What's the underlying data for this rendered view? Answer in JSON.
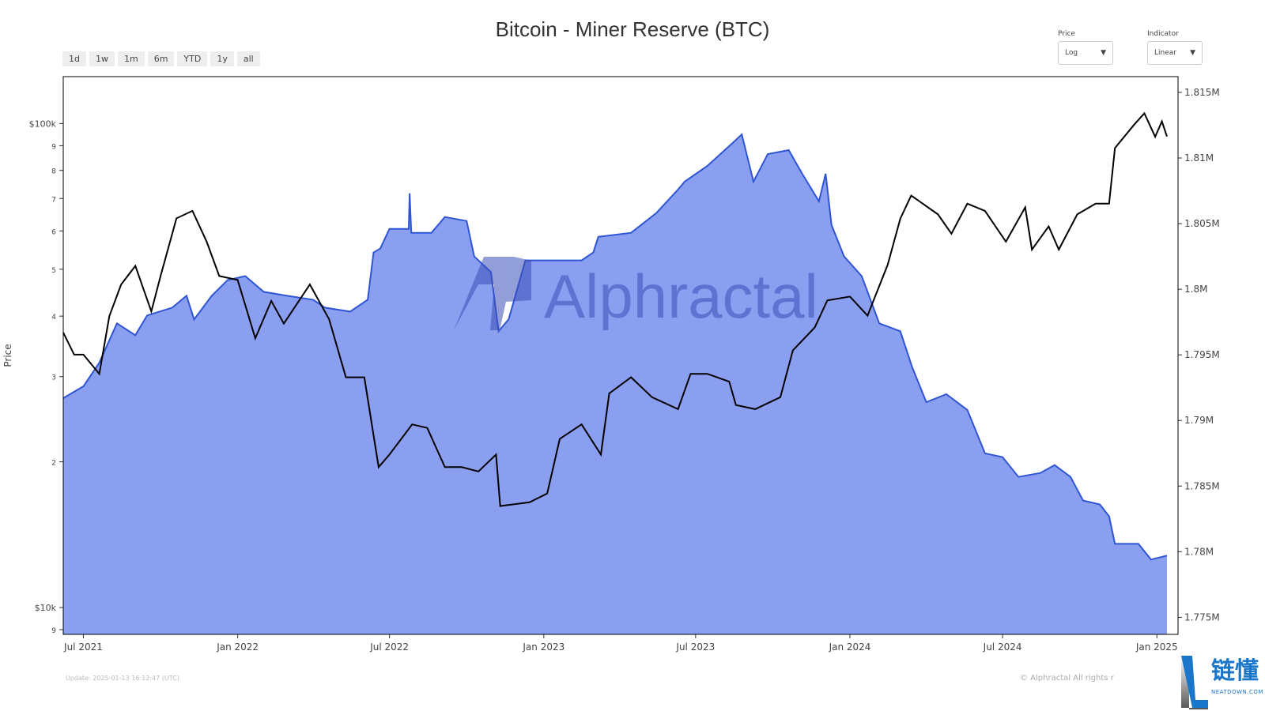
{
  "title": "Bitcoin - Miner Reserve (BTC)",
  "range_buttons": [
    "1d",
    "1w",
    "1m",
    "6m",
    "YTD",
    "1y",
    "all"
  ],
  "price_select": {
    "label": "Price",
    "value": "Log"
  },
  "indicator_select": {
    "label": "Indicator",
    "value": "Linear"
  },
  "watermark": "Alphractal",
  "footer": {
    "update": "Update: 2025-01-13 16:12:47 (UTC)",
    "copyright": "© Alphractal All rights r"
  },
  "corner_logo": {
    "text": "链懂",
    "sub": "NEATDOWN.COM"
  },
  "colors": {
    "fill": "#8a9ff0",
    "line": "#2f55d4",
    "price": "#000000"
  },
  "chart_data": {
    "type": "area+line",
    "xlim": [
      "2021-06-07",
      "2025-01-13"
    ],
    "x_ticks": [
      [
        "2021-07-01",
        "Jul 2021"
      ],
      [
        "2022-01-01",
        "Jan 2022"
      ],
      [
        "2022-07-01",
        "Jul 2022"
      ],
      [
        "2023-01-01",
        "Jan 2023"
      ],
      [
        "2023-07-01",
        "Jul 2023"
      ],
      [
        "2024-01-01",
        "Jan 2024"
      ],
      [
        "2024-07-01",
        "Jul 2024"
      ],
      [
        "2025-01-01",
        "Jan 2025"
      ]
    ],
    "left_axis": {
      "label": "Price",
      "scale": "log",
      "ylim": [
        8800,
        125000
      ],
      "ticks": [
        [
          100000,
          "$100k"
        ],
        [
          90000,
          "9"
        ],
        [
          80000,
          "8"
        ],
        [
          70000,
          "7"
        ],
        [
          60000,
          "6"
        ],
        [
          50000,
          "5"
        ],
        [
          40000,
          "4"
        ],
        [
          30000,
          "3"
        ],
        [
          20000,
          "2"
        ],
        [
          10000,
          "$10k"
        ],
        [
          9000,
          "9"
        ]
      ]
    },
    "right_axis": {
      "scale": "linear",
      "ylim": [
        1.7737,
        1.8162
      ],
      "ticks": [
        [
          1.815,
          "1.815M"
        ],
        [
          1.81,
          "1.81M"
        ],
        [
          1.805,
          "1.805M"
        ],
        [
          1.8,
          "1.8M"
        ],
        [
          1.795,
          "1.795M"
        ],
        [
          1.79,
          "1.79M"
        ],
        [
          1.785,
          "1.785M"
        ],
        [
          1.78,
          "1.78M"
        ],
        [
          1.775,
          "1.775M"
        ]
      ]
    },
    "series": [
      {
        "axis": "right",
        "kind": "area",
        "points": [
          [
            "2021-06-07",
            1.7917
          ],
          [
            "2021-07-01",
            1.7926
          ],
          [
            "2021-07-20",
            1.7944
          ],
          [
            "2021-08-10",
            1.7974
          ],
          [
            "2021-09-01",
            1.7965
          ],
          [
            "2021-09-15",
            1.798
          ],
          [
            "2021-10-15",
            1.7986
          ],
          [
            "2021-11-01",
            1.7995
          ],
          [
            "2021-11-10",
            1.7977
          ],
          [
            "2021-12-01",
            1.7995
          ],
          [
            "2021-12-20",
            1.8007
          ],
          [
            "2022-01-10",
            1.801
          ],
          [
            "2022-02-01",
            1.7998
          ],
          [
            "2022-03-01",
            1.7995
          ],
          [
            "2022-04-01",
            1.7992
          ],
          [
            "2022-04-15",
            1.7986
          ],
          [
            "2022-05-15",
            1.7983
          ],
          [
            "2022-06-05",
            1.7992
          ],
          [
            "2022-06-12",
            1.8028
          ],
          [
            "2022-06-20",
            1.8031
          ],
          [
            "2022-07-01",
            1.8046
          ],
          [
            "2022-07-24",
            1.8046
          ],
          [
            "2022-07-25",
            1.8073
          ],
          [
            "2022-07-27",
            1.8043
          ],
          [
            "2022-08-20",
            1.8043
          ],
          [
            "2022-09-05",
            1.8055
          ],
          [
            "2022-10-01",
            1.8052
          ],
          [
            "2022-10-10",
            1.8025
          ],
          [
            "2022-10-30",
            1.8013
          ],
          [
            "2022-11-08",
            1.7968
          ],
          [
            "2022-11-20",
            1.7977
          ],
          [
            "2022-12-10",
            1.8022
          ],
          [
            "2023-01-15",
            1.8022
          ],
          [
            "2023-02-15",
            1.8022
          ],
          [
            "2023-03-01",
            1.8028
          ],
          [
            "2023-03-07",
            1.804
          ],
          [
            "2023-04-15",
            1.8043
          ],
          [
            "2023-05-15",
            1.8058
          ],
          [
            "2023-06-10",
            1.8076
          ],
          [
            "2023-06-18",
            1.8082
          ],
          [
            "2023-07-15",
            1.8094
          ],
          [
            "2023-08-15",
            1.8112
          ],
          [
            "2023-08-25",
            1.8118
          ],
          [
            "2023-09-08",
            1.8082
          ],
          [
            "2023-09-25",
            1.8103
          ],
          [
            "2023-10-20",
            1.8106
          ],
          [
            "2023-11-05",
            1.8088
          ],
          [
            "2023-11-25",
            1.8067
          ],
          [
            "2023-12-03",
            1.8088
          ],
          [
            "2023-12-10",
            1.8049
          ],
          [
            "2023-12-25",
            1.8025
          ],
          [
            "2024-01-15",
            1.801
          ],
          [
            "2024-02-05",
            1.7974
          ],
          [
            "2024-03-01",
            1.7968
          ],
          [
            "2024-03-15",
            1.7941
          ],
          [
            "2024-04-01",
            1.7914
          ],
          [
            "2024-04-25",
            1.792
          ],
          [
            "2024-05-20",
            1.7908
          ],
          [
            "2024-06-10",
            1.7875
          ],
          [
            "2024-07-01",
            1.7872
          ],
          [
            "2024-07-20",
            1.7857
          ],
          [
            "2024-08-15",
            1.786
          ],
          [
            "2024-09-01",
            1.7866
          ],
          [
            "2024-09-20",
            1.7857
          ],
          [
            "2024-10-05",
            1.7839
          ],
          [
            "2024-10-25",
            1.7836
          ],
          [
            "2024-11-05",
            1.7827
          ],
          [
            "2024-11-12",
            1.7806
          ],
          [
            "2024-12-10",
            1.7806
          ],
          [
            "2024-12-25",
            1.7794
          ],
          [
            "2025-01-13",
            1.7797
          ]
        ]
      },
      {
        "axis": "left",
        "kind": "line",
        "points": [
          [
            "2021-06-07",
            37000
          ],
          [
            "2021-06-20",
            33300
          ],
          [
            "2021-07-01",
            33300
          ],
          [
            "2021-07-20",
            30400
          ],
          [
            "2021-08-01",
            40000
          ],
          [
            "2021-08-15",
            46500
          ],
          [
            "2021-09-01",
            50800
          ],
          [
            "2021-09-20",
            40900
          ],
          [
            "2021-10-01",
            48400
          ],
          [
            "2021-10-20",
            63700
          ],
          [
            "2021-11-08",
            66000
          ],
          [
            "2021-11-25",
            57000
          ],
          [
            "2021-12-10",
            48400
          ],
          [
            "2022-01-01",
            47500
          ],
          [
            "2022-01-22",
            36000
          ],
          [
            "2022-02-10",
            43000
          ],
          [
            "2022-02-25",
            38600
          ],
          [
            "2022-03-28",
            46500
          ],
          [
            "2022-04-20",
            39400
          ],
          [
            "2022-05-10",
            29900
          ],
          [
            "2022-06-01",
            29900
          ],
          [
            "2022-06-18",
            19500
          ],
          [
            "2022-07-01",
            20700
          ],
          [
            "2022-07-28",
            23900
          ],
          [
            "2022-08-15",
            23500
          ],
          [
            "2022-09-05",
            19500
          ],
          [
            "2022-09-25",
            19500
          ],
          [
            "2022-10-15",
            19100
          ],
          [
            "2022-11-05",
            20700
          ],
          [
            "2022-11-10",
            16200
          ],
          [
            "2022-12-15",
            16500
          ],
          [
            "2023-01-05",
            17200
          ],
          [
            "2023-01-20",
            22300
          ],
          [
            "2023-02-15",
            23900
          ],
          [
            "2023-03-10",
            20700
          ],
          [
            "2023-03-20",
            27700
          ],
          [
            "2023-04-15",
            29900
          ],
          [
            "2023-05-10",
            27200
          ],
          [
            "2023-06-10",
            25700
          ],
          [
            "2023-06-25",
            30400
          ],
          [
            "2023-07-15",
            30400
          ],
          [
            "2023-08-10",
            29300
          ],
          [
            "2023-08-18",
            26200
          ],
          [
            "2023-09-10",
            25700
          ],
          [
            "2023-10-10",
            27200
          ],
          [
            "2023-10-25",
            34000
          ],
          [
            "2023-11-20",
            37900
          ],
          [
            "2023-12-05",
            43100
          ],
          [
            "2024-01-01",
            43900
          ],
          [
            "2024-01-22",
            40100
          ],
          [
            "2024-02-15",
            51100
          ],
          [
            "2024-03-01",
            63600
          ],
          [
            "2024-03-14",
            71000
          ],
          [
            "2024-04-15",
            64900
          ],
          [
            "2024-05-01",
            59200
          ],
          [
            "2024-05-20",
            68300
          ],
          [
            "2024-06-10",
            66000
          ],
          [
            "2024-07-05",
            57000
          ],
          [
            "2024-07-28",
            67100
          ],
          [
            "2024-08-05",
            54900
          ],
          [
            "2024-08-25",
            61300
          ],
          [
            "2024-09-06",
            54900
          ],
          [
            "2024-09-28",
            64900
          ],
          [
            "2024-10-20",
            68300
          ],
          [
            "2024-11-05",
            68300
          ],
          [
            "2024-11-12",
            89000
          ],
          [
            "2024-12-05",
            99500
          ],
          [
            "2024-12-17",
            105000
          ],
          [
            "2024-12-30",
            93900
          ],
          [
            "2025-01-07",
            101000
          ],
          [
            "2025-01-13",
            94000
          ]
        ]
      }
    ]
  }
}
